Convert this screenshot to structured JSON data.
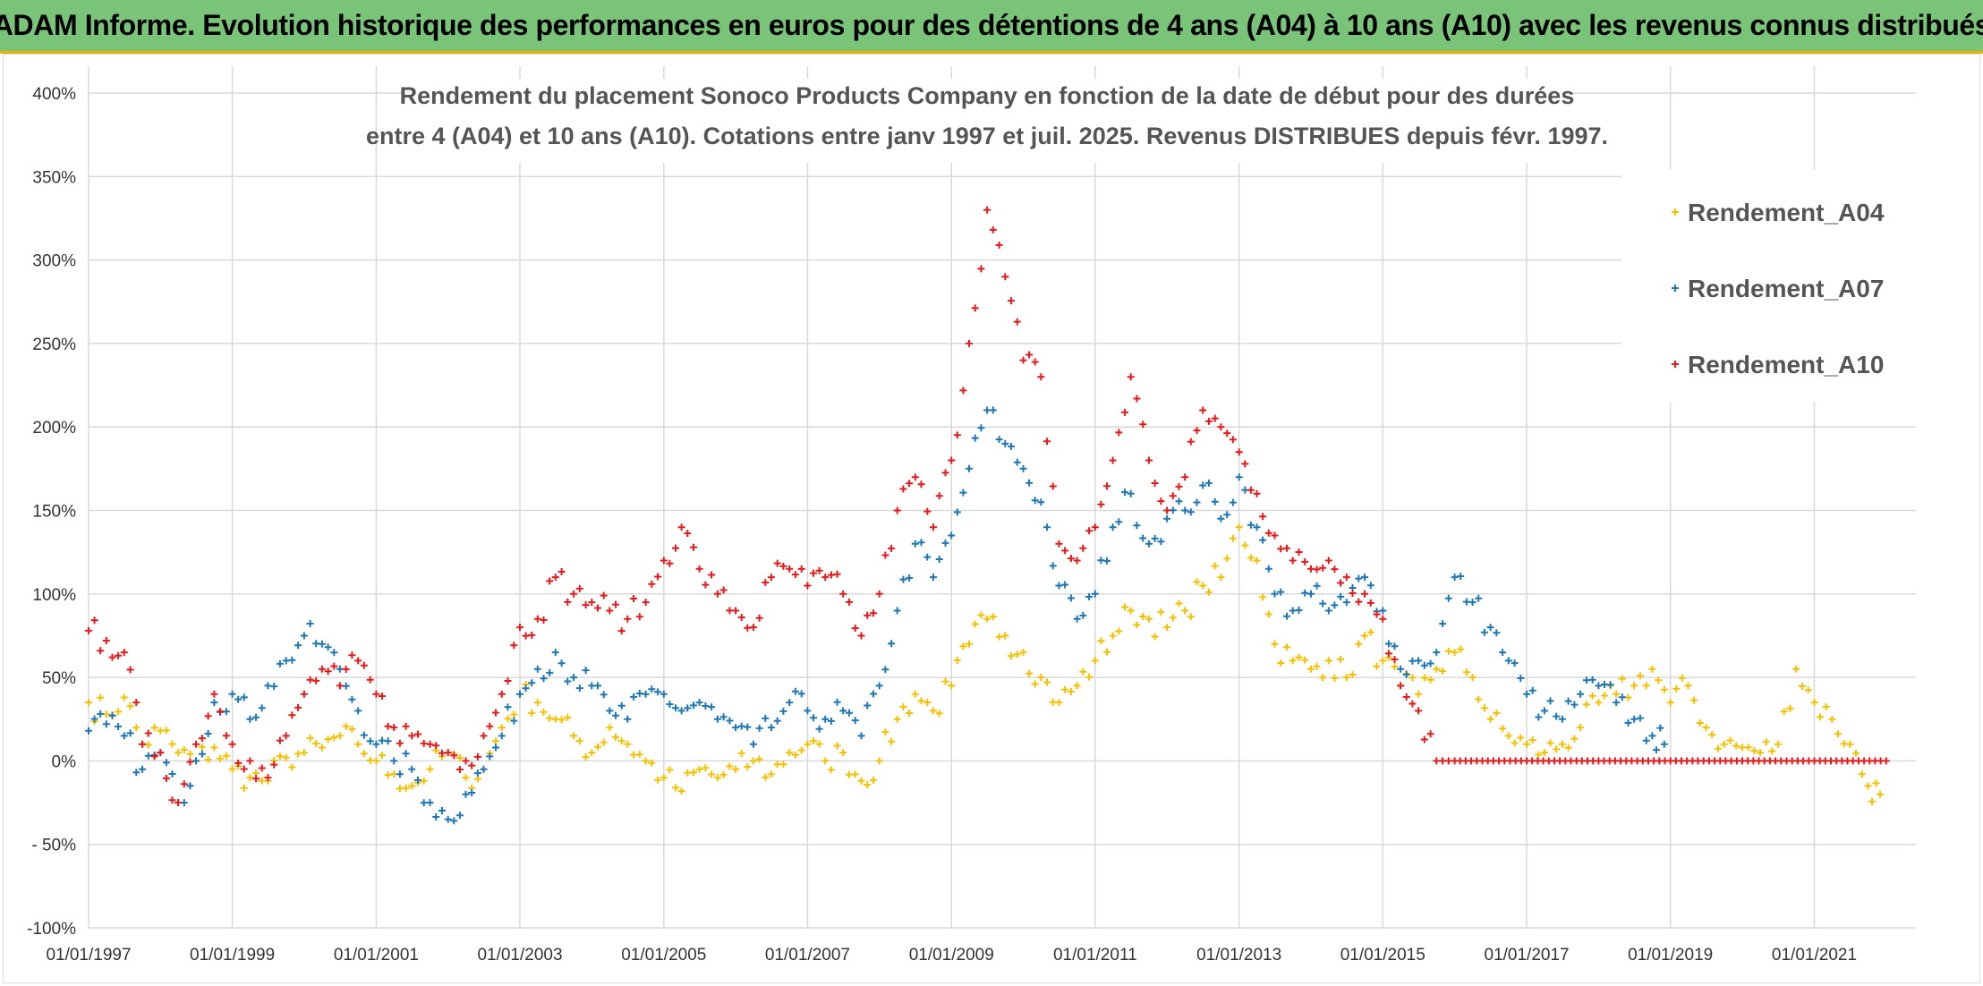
{
  "header": {
    "banner_title": "ADAM Informe. Evolution historique des performances en euros pour des détentions de 4 ans (A04) à 10 ans (A10) avec les revenus connus distribués",
    "banner_bg": "#7ac47a",
    "banner_border": "#e8b400"
  },
  "chart_data": {
    "type": "scatter",
    "title_line1": "Rendement du placement Sonoco Products Company en fonction de la date de début pour des durées",
    "title_line2": "entre 4 (A04) et 10 ans (A10). Cotations entre janv 1997 et juil. 2025. Revenus DISTRIBUES depuis févr. 1997.",
    "x_axis": {
      "type": "date",
      "range": [
        "1997-01-01",
        "2022-06-01"
      ],
      "tick_labels": [
        "01/01/1997",
        "01/01/1999",
        "01/01/2001",
        "01/01/2003",
        "01/01/2005",
        "01/01/2007",
        "01/01/2009",
        "01/01/2011",
        "01/01/2013",
        "01/01/2015",
        "01/01/2017",
        "01/01/2019",
        "01/01/2021"
      ]
    },
    "y_axis": {
      "unit": "%",
      "range": [
        -100,
        400
      ],
      "tick_values": [
        -100,
        -50,
        0,
        50,
        100,
        150,
        200,
        250,
        300,
        350,
        400
      ],
      "tick_labels": [
        "-100%",
        "- 50%",
        "0%",
        "50%",
        "100%",
        "150%",
        "200%",
        "250%",
        "300%",
        "350%",
        "400%"
      ]
    },
    "grid": true,
    "marker": "+",
    "legend_position": "right",
    "series": [
      {
        "name": "Rendement_A04",
        "color": "#f5c000",
        "points": [
          [
            "1997-01-01",
            35
          ],
          [
            "1997-04-01",
            28
          ],
          [
            "1997-07-01",
            38
          ],
          [
            "1997-10-01",
            10
          ],
          [
            "1998-01-01",
            18
          ],
          [
            "1998-04-01",
            5
          ],
          [
            "1998-07-01",
            0
          ],
          [
            "1998-10-01",
            8
          ],
          [
            "1999-01-01",
            -5
          ],
          [
            "1999-04-01",
            -10
          ],
          [
            "1999-07-01",
            -12
          ],
          [
            "1999-10-01",
            2
          ],
          [
            "2000-01-01",
            5
          ],
          [
            "2000-04-01",
            8
          ],
          [
            "2000-07-01",
            15
          ],
          [
            "2000-10-01",
            10
          ],
          [
            "2001-01-01",
            0
          ],
          [
            "2001-04-01",
            -8
          ],
          [
            "2001-07-01",
            -15
          ],
          [
            "2001-10-01",
            -5
          ],
          [
            "2002-01-01",
            5
          ],
          [
            "2002-04-01",
            -10
          ],
          [
            "2002-07-01",
            -5
          ],
          [
            "2002-10-01",
            20
          ],
          [
            "2003-01-01",
            40
          ],
          [
            "2003-04-01",
            35
          ],
          [
            "2003-07-01",
            25
          ],
          [
            "2003-10-01",
            15
          ],
          [
            "2004-01-01",
            5
          ],
          [
            "2004-04-01",
            20
          ],
          [
            "2004-07-01",
            10
          ],
          [
            "2004-10-01",
            0
          ],
          [
            "2005-01-01",
            -10
          ],
          [
            "2005-04-01",
            -18
          ],
          [
            "2005-07-01",
            -5
          ],
          [
            "2005-10-01",
            -10
          ],
          [
            "2006-01-01",
            -5
          ],
          [
            "2006-04-01",
            0
          ],
          [
            "2006-07-01",
            -8
          ],
          [
            "2006-10-01",
            5
          ],
          [
            "2007-01-01",
            10
          ],
          [
            "2007-04-01",
            0
          ],
          [
            "2007-07-01",
            5
          ],
          [
            "2007-10-01",
            -12
          ],
          [
            "2008-01-01",
            0
          ],
          [
            "2008-04-01",
            25
          ],
          [
            "2008-07-01",
            40
          ],
          [
            "2008-10-01",
            30
          ],
          [
            "2009-01-01",
            45
          ],
          [
            "2009-04-01",
            70
          ],
          [
            "2009-07-01",
            85
          ],
          [
            "2009-10-01",
            75
          ],
          [
            "2010-01-01",
            65
          ],
          [
            "2010-04-01",
            50
          ],
          [
            "2010-07-01",
            35
          ],
          [
            "2010-10-01",
            45
          ],
          [
            "2011-01-01",
            60
          ],
          [
            "2011-04-01",
            75
          ],
          [
            "2011-07-01",
            90
          ],
          [
            "2011-10-01",
            85
          ],
          [
            "2012-01-01",
            80
          ],
          [
            "2012-04-01",
            90
          ],
          [
            "2012-07-01",
            105
          ],
          [
            "2012-10-01",
            110
          ],
          [
            "2013-01-01",
            140
          ],
          [
            "2013-04-01",
            120
          ],
          [
            "2013-07-01",
            70
          ],
          [
            "2013-10-01",
            60
          ],
          [
            "2014-01-01",
            55
          ],
          [
            "2014-04-01",
            60
          ],
          [
            "2014-07-01",
            50
          ],
          [
            "2014-10-01",
            75
          ],
          [
            "2015-01-01",
            60
          ],
          [
            "2015-04-01",
            45
          ],
          [
            "2015-07-01",
            40
          ],
          [
            "2015-10-01",
            55
          ],
          [
            "2016-01-01",
            65
          ],
          [
            "2016-04-01",
            50
          ],
          [
            "2016-07-01",
            25
          ],
          [
            "2016-10-01",
            15
          ],
          [
            "2017-01-01",
            10
          ],
          [
            "2017-04-01",
            5
          ],
          [
            "2017-07-01",
            10
          ],
          [
            "2017-10-01",
            20
          ],
          [
            "2018-01-01",
            35
          ],
          [
            "2018-04-01",
            40
          ],
          [
            "2018-07-01",
            45
          ],
          [
            "2018-10-01",
            55
          ],
          [
            "2019-01-01",
            35
          ],
          [
            "2019-04-01",
            45
          ],
          [
            "2019-07-01",
            20
          ],
          [
            "2019-10-01",
            10
          ],
          [
            "2020-01-01",
            8
          ],
          [
            "2020-04-01",
            5
          ],
          [
            "2020-07-01",
            10
          ],
          [
            "2020-10-01",
            55
          ],
          [
            "2021-01-01",
            35
          ],
          [
            "2021-04-01",
            25
          ],
          [
            "2021-07-01",
            10
          ],
          [
            "2021-10-01",
            -15
          ],
          [
            "2021-12-01",
            -20
          ]
        ]
      },
      {
        "name": "Rendement_A07",
        "color": "#1f77b4",
        "points": [
          [
            "1997-01-01",
            18
          ],
          [
            "1997-04-01",
            22
          ],
          [
            "1997-07-01",
            15
          ],
          [
            "1997-10-01",
            -5
          ],
          [
            "1998-01-01",
            5
          ],
          [
            "1998-04-01",
            -25
          ],
          [
            "1998-07-01",
            0
          ],
          [
            "1998-10-01",
            35
          ],
          [
            "1999-01-01",
            40
          ],
          [
            "1999-04-01",
            25
          ],
          [
            "1999-07-01",
            45
          ],
          [
            "1999-10-01",
            60
          ],
          [
            "2000-01-01",
            75
          ],
          [
            "2000-04-01",
            70
          ],
          [
            "2000-07-01",
            55
          ],
          [
            "2000-10-01",
            30
          ],
          [
            "2001-01-01",
            10
          ],
          [
            "2001-04-01",
            0
          ],
          [
            "2001-07-01",
            -5
          ],
          [
            "2001-10-01",
            -25
          ],
          [
            "2002-01-01",
            -35
          ],
          [
            "2002-04-01",
            -20
          ],
          [
            "2002-07-01",
            -5
          ],
          [
            "2002-10-01",
            15
          ],
          [
            "2003-01-01",
            40
          ],
          [
            "2003-04-01",
            55
          ],
          [
            "2003-07-01",
            65
          ],
          [
            "2003-10-01",
            50
          ],
          [
            "2004-01-01",
            45
          ],
          [
            "2004-04-01",
            30
          ],
          [
            "2004-07-01",
            25
          ],
          [
            "2004-10-01",
            40
          ],
          [
            "2005-01-01",
            40
          ],
          [
            "2005-04-01",
            30
          ],
          [
            "2005-07-01",
            35
          ],
          [
            "2005-10-01",
            25
          ],
          [
            "2006-01-01",
            20
          ],
          [
            "2006-04-01",
            10
          ],
          [
            "2006-07-01",
            20
          ],
          [
            "2006-10-01",
            35
          ],
          [
            "2007-01-01",
            30
          ],
          [
            "2007-04-01",
            25
          ],
          [
            "2007-07-01",
            30
          ],
          [
            "2007-10-01",
            15
          ],
          [
            "2008-01-01",
            45
          ],
          [
            "2008-04-01",
            90
          ],
          [
            "2008-07-01",
            130
          ],
          [
            "2008-10-01",
            110
          ],
          [
            "2009-01-01",
            135
          ],
          [
            "2009-04-01",
            175
          ],
          [
            "2009-07-01",
            210
          ],
          [
            "2009-10-01",
            190
          ],
          [
            "2010-01-01",
            175
          ],
          [
            "2010-04-01",
            155
          ],
          [
            "2010-07-01",
            105
          ],
          [
            "2010-10-01",
            85
          ],
          [
            "2011-01-01",
            100
          ],
          [
            "2011-04-01",
            140
          ],
          [
            "2011-07-01",
            160
          ],
          [
            "2011-10-01",
            130
          ],
          [
            "2012-01-01",
            145
          ],
          [
            "2012-04-01",
            150
          ],
          [
            "2012-07-01",
            165
          ],
          [
            "2012-10-01",
            145
          ],
          [
            "2013-01-01",
            170
          ],
          [
            "2013-04-01",
            140
          ],
          [
            "2013-07-01",
            100
          ],
          [
            "2013-10-01",
            90
          ],
          [
            "2014-01-01",
            100
          ],
          [
            "2014-04-01",
            90
          ],
          [
            "2014-07-01",
            95
          ],
          [
            "2014-10-01",
            110
          ],
          [
            "2015-01-01",
            90
          ],
          [
            "2015-04-01",
            55
          ],
          [
            "2015-07-01",
            60
          ],
          [
            "2015-10-01",
            65
          ],
          [
            "2016-01-01",
            110
          ],
          [
            "2016-04-01",
            95
          ],
          [
            "2016-07-01",
            80
          ],
          [
            "2016-10-01",
            60
          ],
          [
            "2017-01-01",
            40
          ],
          [
            "2017-04-01",
            30
          ],
          [
            "2017-07-01",
            25
          ],
          [
            "2017-10-01",
            40
          ],
          [
            "2018-01-01",
            45
          ],
          [
            "2018-04-01",
            35
          ],
          [
            "2018-07-01",
            25
          ],
          [
            "2018-10-01",
            15
          ],
          [
            "2018-12-01",
            10
          ]
        ]
      },
      {
        "name": "Rendement_A10",
        "color": "#e41a1c",
        "points": [
          [
            "1997-01-01",
            78
          ],
          [
            "1997-04-01",
            72
          ],
          [
            "1997-07-01",
            65
          ],
          [
            "1997-10-01",
            10
          ],
          [
            "1998-01-01",
            5
          ],
          [
            "1998-04-01",
            -25
          ],
          [
            "1998-07-01",
            10
          ],
          [
            "1998-10-01",
            40
          ],
          [
            "1999-01-01",
            10
          ],
          [
            "1999-04-01",
            0
          ],
          [
            "1999-07-01",
            -10
          ],
          [
            "1999-10-01",
            15
          ],
          [
            "2000-01-01",
            40
          ],
          [
            "2000-04-01",
            55
          ],
          [
            "2000-07-01",
            45
          ],
          [
            "2000-10-01",
            60
          ],
          [
            "2001-01-01",
            40
          ],
          [
            "2001-04-01",
            20
          ],
          [
            "2001-07-01",
            15
          ],
          [
            "2001-10-01",
            10
          ],
          [
            "2002-01-01",
            5
          ],
          [
            "2002-04-01",
            0
          ],
          [
            "2002-07-01",
            15
          ],
          [
            "2002-10-01",
            40
          ],
          [
            "2003-01-01",
            80
          ],
          [
            "2003-04-01",
            85
          ],
          [
            "2003-07-01",
            110
          ],
          [
            "2003-10-01",
            100
          ],
          [
            "2004-01-01",
            95
          ],
          [
            "2004-04-01",
            90
          ],
          [
            "2004-07-01",
            85
          ],
          [
            "2004-10-01",
            95
          ],
          [
            "2005-01-01",
            120
          ],
          [
            "2005-04-01",
            140
          ],
          [
            "2005-07-01",
            115
          ],
          [
            "2005-10-01",
            100
          ],
          [
            "2006-01-01",
            90
          ],
          [
            "2006-04-01",
            80
          ],
          [
            "2006-07-01",
            110
          ],
          [
            "2006-10-01",
            115
          ],
          [
            "2007-01-01",
            105
          ],
          [
            "2007-04-01",
            110
          ],
          [
            "2007-07-01",
            100
          ],
          [
            "2007-10-01",
            75
          ],
          [
            "2008-01-01",
            100
          ],
          [
            "2008-04-01",
            150
          ],
          [
            "2008-07-01",
            170
          ],
          [
            "2008-10-01",
            140
          ],
          [
            "2009-01-01",
            180
          ],
          [
            "2009-04-01",
            250
          ],
          [
            "2009-07-01",
            330
          ],
          [
            "2009-10-01",
            290
          ],
          [
            "2010-01-01",
            240
          ],
          [
            "2010-04-01",
            230
          ],
          [
            "2010-07-01",
            130
          ],
          [
            "2010-10-01",
            120
          ],
          [
            "2011-01-01",
            140
          ],
          [
            "2011-04-01",
            180
          ],
          [
            "2011-07-01",
            230
          ],
          [
            "2011-10-01",
            180
          ],
          [
            "2012-01-01",
            150
          ],
          [
            "2012-04-01",
            170
          ],
          [
            "2012-07-01",
            210
          ],
          [
            "2012-10-01",
            200
          ],
          [
            "2013-01-01",
            185
          ],
          [
            "2013-04-01",
            160
          ],
          [
            "2013-07-01",
            135
          ],
          [
            "2013-10-01",
            120
          ],
          [
            "2014-01-01",
            115
          ],
          [
            "2014-04-01",
            120
          ],
          [
            "2014-07-01",
            110
          ],
          [
            "2014-10-01",
            100
          ],
          [
            "2015-01-01",
            85
          ],
          [
            "2015-04-01",
            45
          ],
          [
            "2015-07-01",
            30
          ],
          [
            "2015-10-01",
            0
          ],
          [
            "2016-01-01",
            0
          ],
          [
            "2017-01-01",
            0
          ],
          [
            "2018-01-01",
            0
          ],
          [
            "2019-01-01",
            0
          ],
          [
            "2020-01-01",
            0
          ],
          [
            "2021-01-01",
            0
          ],
          [
            "2022-01-01",
            0
          ]
        ]
      }
    ]
  }
}
